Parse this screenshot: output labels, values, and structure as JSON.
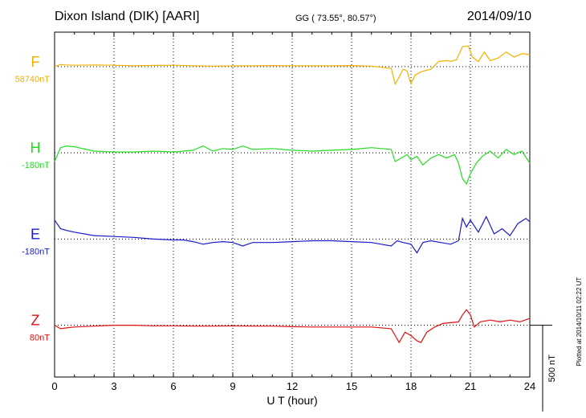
{
  "header": {
    "station": "Dixon Island (DIK)  [AARI]",
    "coords": "GG ( 73.55°,  80.57°)",
    "date": "2014/09/10"
  },
  "plotted_note": "Plotted at 2014/10/11 02:22 UT",
  "chart_data": {
    "type": "line",
    "xlabel": "U T (hour)",
    "xlim": [
      0,
      24
    ],
    "xticks": [
      "0",
      "3",
      "6",
      "9",
      "12",
      "15",
      "18",
      "21",
      "24"
    ],
    "ylim_nT": [
      -500,
      1500
    ],
    "scale_bar": {
      "label": "500 nT",
      "value_nT": 500
    },
    "grid": true,
    "series": [
      {
        "name": "F",
        "baseline": "58740nT",
        "offset_nT": 1300,
        "color": "#f5b000",
        "points": [
          [
            0,
            0
          ],
          [
            0.3,
            12
          ],
          [
            0.6,
            10
          ],
          [
            1,
            8
          ],
          [
            2,
            10
          ],
          [
            3,
            8
          ],
          [
            4,
            5
          ],
          [
            5,
            7
          ],
          [
            6,
            8
          ],
          [
            7,
            5
          ],
          [
            8,
            3
          ],
          [
            9,
            4
          ],
          [
            10,
            5
          ],
          [
            11,
            6
          ],
          [
            12,
            5
          ],
          [
            13,
            5
          ],
          [
            14,
            5
          ],
          [
            15,
            6
          ],
          [
            16,
            3
          ],
          [
            17,
            -10
          ],
          [
            17.2,
            -100
          ],
          [
            17.4,
            -60
          ],
          [
            17.6,
            -15
          ],
          [
            17.8,
            -25
          ],
          [
            18,
            -100
          ],
          [
            18.2,
            -50
          ],
          [
            18.5,
            -30
          ],
          [
            19,
            -15
          ],
          [
            19.4,
            30
          ],
          [
            19.8,
            35
          ],
          [
            20,
            30
          ],
          [
            20.3,
            40
          ],
          [
            20.6,
            115
          ],
          [
            20.9,
            120
          ],
          [
            21.1,
            55
          ],
          [
            21.4,
            30
          ],
          [
            21.7,
            85
          ],
          [
            22,
            35
          ],
          [
            22.4,
            50
          ],
          [
            22.8,
            85
          ],
          [
            23.2,
            55
          ],
          [
            23.6,
            75
          ],
          [
            24,
            70
          ]
        ]
      },
      {
        "name": "H",
        "baseline": "-180nT",
        "offset_nT": 800,
        "color": "#22dd22",
        "points": [
          [
            0,
            -50
          ],
          [
            0.3,
            30
          ],
          [
            0.6,
            40
          ],
          [
            1,
            35
          ],
          [
            2,
            10
          ],
          [
            3,
            5
          ],
          [
            4,
            5
          ],
          [
            5,
            10
          ],
          [
            6,
            5
          ],
          [
            7,
            15
          ],
          [
            7.5,
            40
          ],
          [
            8,
            10
          ],
          [
            8.5,
            25
          ],
          [
            9,
            20
          ],
          [
            9.5,
            40
          ],
          [
            10,
            20
          ],
          [
            11,
            25
          ],
          [
            12,
            15
          ],
          [
            13,
            10
          ],
          [
            14,
            15
          ],
          [
            15,
            20
          ],
          [
            16,
            30
          ],
          [
            17,
            20
          ],
          [
            17.2,
            -50
          ],
          [
            17.5,
            -30
          ],
          [
            17.8,
            -10
          ],
          [
            18,
            -40
          ],
          [
            18.3,
            -20
          ],
          [
            18.6,
            -70
          ],
          [
            19,
            -30
          ],
          [
            19.4,
            -10
          ],
          [
            19.8,
            -30
          ],
          [
            20.2,
            -10
          ],
          [
            20.4,
            -60
          ],
          [
            20.6,
            -150
          ],
          [
            20.8,
            -180
          ],
          [
            21,
            -120
          ],
          [
            21.3,
            -60
          ],
          [
            21.6,
            -20
          ],
          [
            22,
            10
          ],
          [
            22.4,
            -30
          ],
          [
            22.8,
            20
          ],
          [
            23.2,
            -10
          ],
          [
            23.6,
            10
          ],
          [
            24,
            -60
          ]
        ]
      },
      {
        "name": "E",
        "baseline": "-180nT",
        "offset_nT": 300,
        "color": "#1a1acc",
        "points": [
          [
            0,
            110
          ],
          [
            0.3,
            60
          ],
          [
            0.6,
            50
          ],
          [
            1,
            40
          ],
          [
            2,
            20
          ],
          [
            3,
            15
          ],
          [
            4,
            10
          ],
          [
            5,
            0
          ],
          [
            6,
            -5
          ],
          [
            6.5,
            -5
          ],
          [
            7,
            -15
          ],
          [
            7.5,
            -30
          ],
          [
            8,
            -20
          ],
          [
            8.5,
            -15
          ],
          [
            9,
            -20
          ],
          [
            9.5,
            -40
          ],
          [
            10,
            -20
          ],
          [
            11,
            -20
          ],
          [
            12,
            -15
          ],
          [
            13,
            -10
          ],
          [
            14,
            -10
          ],
          [
            15,
            -15
          ],
          [
            16,
            -20
          ],
          [
            17,
            -40
          ],
          [
            17.3,
            -10
          ],
          [
            17.6,
            -20
          ],
          [
            18,
            -30
          ],
          [
            18.3,
            -80
          ],
          [
            18.6,
            -20
          ],
          [
            19,
            -10
          ],
          [
            19.5,
            -20
          ],
          [
            20,
            -30
          ],
          [
            20.4,
            -10
          ],
          [
            20.6,
            120
          ],
          [
            20.8,
            70
          ],
          [
            21,
            110
          ],
          [
            21.4,
            40
          ],
          [
            21.8,
            130
          ],
          [
            22.2,
            30
          ],
          [
            22.6,
            60
          ],
          [
            23,
            20
          ],
          [
            23.4,
            90
          ],
          [
            23.8,
            120
          ],
          [
            24,
            100
          ]
        ]
      },
      {
        "name": "Z",
        "baseline": "80nT",
        "offset_nT": -200,
        "color": "#e01010",
        "points": [
          [
            0,
            0
          ],
          [
            0.3,
            -20
          ],
          [
            0.6,
            -15
          ],
          [
            1,
            -10
          ],
          [
            2,
            -5
          ],
          [
            3,
            0
          ],
          [
            4,
            0
          ],
          [
            5,
            -3
          ],
          [
            6,
            -3
          ],
          [
            7,
            -5
          ],
          [
            8,
            -5
          ],
          [
            9,
            -3
          ],
          [
            10,
            -5
          ],
          [
            11,
            -5
          ],
          [
            12,
            -8
          ],
          [
            13,
            -10
          ],
          [
            14,
            -10
          ],
          [
            15,
            -10
          ],
          [
            16,
            -10
          ],
          [
            17,
            -20
          ],
          [
            17.2,
            -60
          ],
          [
            17.4,
            -100
          ],
          [
            17.7,
            -40
          ],
          [
            18,
            -60
          ],
          [
            18.3,
            -90
          ],
          [
            18.5,
            -100
          ],
          [
            18.8,
            -40
          ],
          [
            19.2,
            -10
          ],
          [
            19.6,
            10
          ],
          [
            20,
            15
          ],
          [
            20.4,
            20
          ],
          [
            20.6,
            60
          ],
          [
            20.8,
            90
          ],
          [
            21,
            60
          ],
          [
            21.2,
            -10
          ],
          [
            21.5,
            20
          ],
          [
            22,
            30
          ],
          [
            22.5,
            20
          ],
          [
            23,
            30
          ],
          [
            23.5,
            20
          ],
          [
            24,
            40
          ]
        ]
      }
    ]
  }
}
